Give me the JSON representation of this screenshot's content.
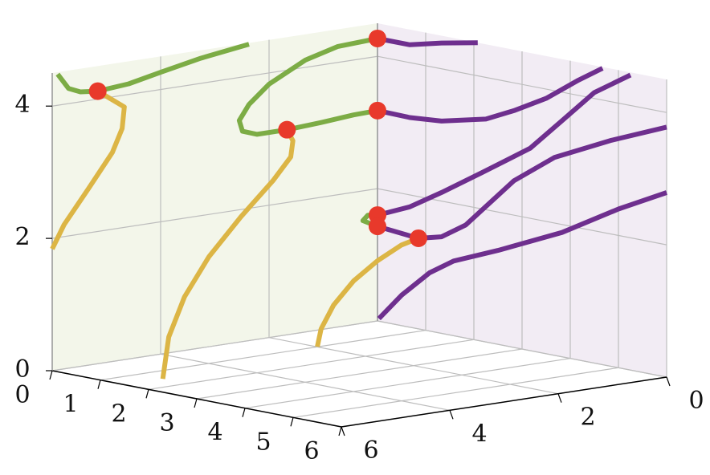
{
  "chart_data": {
    "type": "line3d",
    "xlim": [
      0,
      6
    ],
    "xticks": [
      0,
      1,
      2,
      3,
      4,
      5,
      6
    ],
    "ylim": [
      0,
      6
    ],
    "yticks": [
      0,
      2,
      4,
      6
    ],
    "zlim": [
      0,
      4.5
    ],
    "zticks": [
      0,
      2,
      4
    ],
    "grid": true,
    "wall_colors": [
      "#f3f6ea",
      "#f2ecf4"
    ],
    "series": [
      {
        "color": "#6e2f8e",
        "x": [
          0,
          0.67,
          1.33,
          2.08
        ],
        "y": [
          0,
          0,
          0,
          0
        ],
        "z": [
          4.27,
          4.27,
          4.39,
          4.5
        ]
      },
      {
        "color": "#6e2f8e",
        "x": [
          0,
          0.67,
          1.33,
          2.25,
          2.83,
          3.5,
          4.17,
          4.67
        ],
        "y": [
          0,
          0,
          0,
          0,
          0,
          0,
          0,
          0
        ],
        "z": [
          3.18,
          3.17,
          3.21,
          3.37,
          3.58,
          3.86,
          4.23,
          4.48
        ]
      },
      {
        "color": "#6e2f8e",
        "x": [
          0,
          0.67,
          1.33,
          2.17,
          3.17,
          3.83,
          4.5,
          5.25
        ],
        "y": [
          0,
          0,
          0,
          0,
          0,
          0,
          0,
          0
        ],
        "z": [
          1.6,
          1.82,
          2.13,
          2.55,
          3.06,
          3.57,
          4.09,
          4.46
        ]
      },
      {
        "color": "#6e2f8e",
        "x": [
          0,
          0.85,
          1.33,
          1.83,
          2.83,
          3.67,
          4.83,
          6
        ],
        "y": [
          0,
          0,
          0,
          0,
          0,
          0,
          0,
          0
        ],
        "z": [
          1.43,
          1.37,
          1.46,
          1.71,
          2.52,
          2.99,
          3.41,
          3.78
        ]
      },
      {
        "color": "#6e2f8e",
        "x": [
          0.03,
          0.5,
          1.08,
          1.58,
          2.5,
          3.83,
          5,
          6
        ],
        "y": [
          0,
          0,
          0,
          0,
          0,
          0,
          0,
          0
        ],
        "z": [
          0.04,
          0.46,
          0.88,
          1.13,
          1.42,
          1.88,
          2.4,
          2.79
        ]
      },
      {
        "color": "#7cac45",
        "x": [
          0,
          0,
          0,
          0,
          0,
          0,
          0,
          0
        ],
        "y": [
          5.9,
          5.7,
          5.48,
          5.16,
          4.59,
          4.0,
          3.26,
          2.37
        ],
        "z": [
          4.47,
          4.23,
          4.15,
          4.12,
          4.16,
          4.26,
          4.38,
          4.48
        ]
      },
      {
        "color": "#7cac45",
        "x": [
          0,
          0,
          0,
          0,
          0,
          0,
          0,
          0,
          0,
          0,
          0,
          0
        ],
        "y": [
          0,
          0.74,
          1.33,
          2.0,
          2.37,
          2.55,
          2.49,
          2.22,
          1.67,
          1.04,
          0.44,
          0
        ],
        "z": [
          4.27,
          4.24,
          4.11,
          3.83,
          3.57,
          3.35,
          3.18,
          3.1,
          3.1,
          3.13,
          3.17,
          3.18
        ]
      },
      {
        "color": "#7cac45",
        "x": [
          0,
          0,
          0,
          0
        ],
        "y": [
          0,
          0.18,
          0.27,
          0
        ],
        "z": [
          1.6,
          1.62,
          1.55,
          1.43
        ]
      },
      {
        "color": "#dcb545",
        "x": [
          0,
          0,
          0,
          0,
          0,
          0,
          0
        ],
        "y": [
          5.16,
          4.67,
          4.71,
          4.89,
          5.33,
          5.78,
          6.0
        ],
        "z": [
          4.12,
          3.82,
          3.5,
          3.16,
          2.67,
          2.18,
          1.84
        ]
      },
      {
        "color": "#dcb545",
        "x": [
          0,
          0,
          0,
          0,
          0,
          0,
          0,
          0,
          0
        ],
        "y": [
          1.67,
          1.56,
          1.6,
          1.93,
          2.52,
          3.11,
          3.56,
          3.85,
          3.96
        ],
        "z": [
          3.1,
          2.92,
          2.68,
          2.36,
          1.89,
          1.36,
          0.81,
          0.24,
          -0.38
        ]
      },
      {
        "color": "#dcb545",
        "x": [
          0.85,
          0.5,
          0,
          0,
          0,
          0,
          0
        ],
        "y": [
          0,
          0,
          0,
          0.44,
          0.81,
          1.04,
          1.11
        ],
        "z": [
          1.37,
          1.22,
          0.91,
          0.66,
          0.34,
          0.01,
          -0.25
        ]
      }
    ],
    "markers": {
      "color": "#e8392b",
      "x": [
        0,
        0,
        0,
        0,
        0,
        0,
        0.85
      ],
      "y": [
        0,
        5.16,
        1.67,
        0,
        0,
        0,
        0
      ],
      "z": [
        4.27,
        4.12,
        3.1,
        3.18,
        1.6,
        1.43,
        1.37
      ]
    }
  }
}
